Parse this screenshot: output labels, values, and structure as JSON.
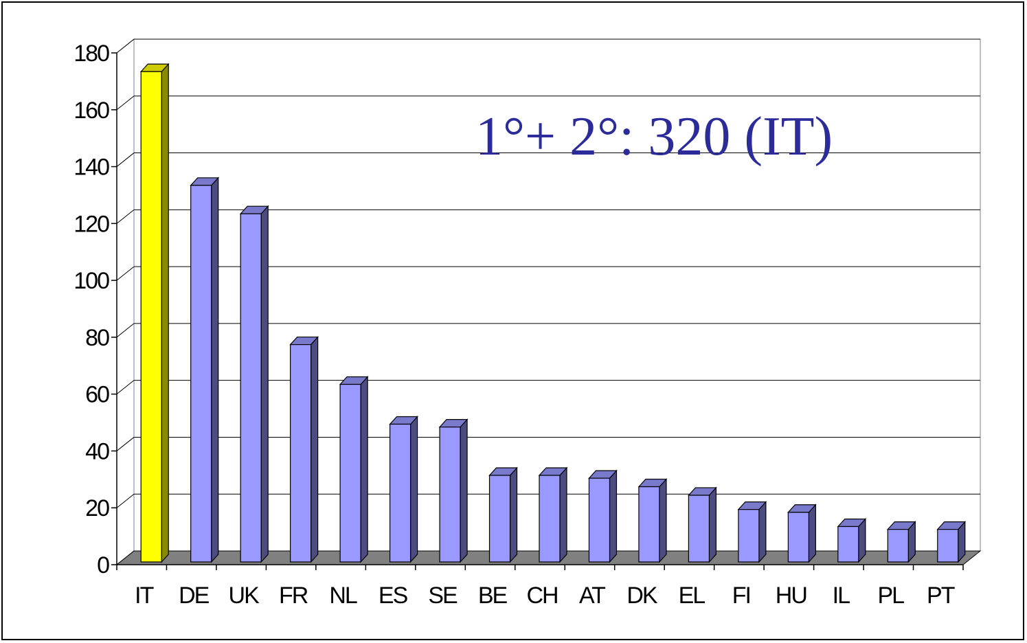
{
  "chart_data": {
    "type": "bar",
    "categories": [
      "IT",
      "DE",
      "UK",
      "FR",
      "NL",
      "ES",
      "SE",
      "BE",
      "CH",
      "AT",
      "DK",
      "EL",
      "FI",
      "HU",
      "IL",
      "PL",
      "PT"
    ],
    "values": [
      171,
      131,
      121,
      75,
      61,
      47,
      46,
      29,
      29,
      28,
      25,
      22,
      17,
      16,
      11,
      10,
      10
    ],
    "highlight_category": "IT",
    "title": "",
    "xlabel": "",
    "ylabel": "",
    "ylim": [
      0,
      180
    ],
    "yticks": [
      0,
      20,
      40,
      60,
      80,
      100,
      120,
      140,
      160,
      180
    ],
    "grid": true,
    "annotation": "1°+ 2°: 320 (IT)",
    "colors": {
      "bar": "#9999ff",
      "bar_side": "#4c4c80",
      "bar_top": "#7a7acc",
      "highlight": "#ffff00",
      "highlight_side": "#8a8a00",
      "highlight_top": "#cccc00",
      "floor": "#808080",
      "gridline": "#000000",
      "annotation": "#2b2b9a"
    }
  }
}
